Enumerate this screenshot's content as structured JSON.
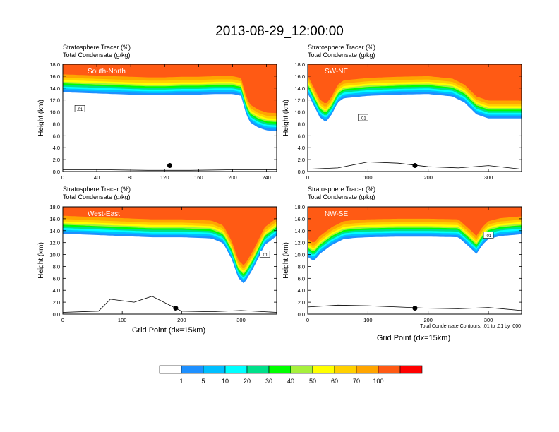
{
  "title": "2013-08-29_12:00:00",
  "panel_subtitle_1": "Stratosphere Tracer   (%)",
  "panel_subtitle_2": "Total Condensate   (g/kg)",
  "ylabel": "Height (km)",
  "xlabel": "Grid Point (dx=15km)",
  "contour_note": "Total Condensate Contours: .01 to .01 by .000",
  "contour_label": ".01",
  "colors": {
    "levels": [
      "#ffffff",
      "#1e90ff",
      "#00bfff",
      "#00ffff",
      "#00e08a",
      "#00ff00",
      "#a6f03c",
      "#ffff00",
      "#ffd000",
      "#ffa500",
      "#ff5a14",
      "#ff0000"
    ],
    "contour": "#000000",
    "marker": "#000000"
  },
  "colorbar": {
    "labels": [
      "1",
      "5",
      "10",
      "20",
      "30",
      "40",
      "50",
      "60",
      "70",
      "100"
    ]
  },
  "chart_data": [
    {
      "type": "heatmap",
      "name": "South-North",
      "label": "South-North",
      "xlim": [
        0,
        252
      ],
      "ylim": [
        0,
        18
      ],
      "xticks": [
        0,
        40,
        80,
        120,
        160,
        200,
        240
      ],
      "yticks": [
        0,
        2,
        4,
        6,
        8,
        10,
        12,
        14,
        16,
        18
      ],
      "xtick_labels": [
        "0",
        "40",
        "80",
        "120",
        "160",
        "200",
        "240"
      ],
      "ytick_labels": [
        "0.0",
        "2.0",
        "4.0",
        "6.0",
        "8.0",
        "10.0",
        "12.0",
        "14.0",
        "16.0",
        "18.0"
      ],
      "tropopause_km": {
        "x": [
          0,
          20,
          40,
          60,
          80,
          100,
          120,
          140,
          160,
          180,
          200,
          210,
          215,
          220,
          230,
          240,
          252
        ],
        "y": [
          14.2,
          14.1,
          14.0,
          13.9,
          13.8,
          13.7,
          13.7,
          13.8,
          13.8,
          13.9,
          13.9,
          13.6,
          11.0,
          9.2,
          8.3,
          7.8,
          7.7
        ]
      },
      "marker": {
        "x": 126,
        "y": 1.0
      },
      "terrain_km": {
        "x": [
          0,
          50,
          100,
          150,
          200,
          252
        ],
        "y": [
          0.3,
          0.3,
          0.2,
          0.2,
          0.3,
          0.3
        ]
      },
      "contour_label_at": {
        "x": 20,
        "y": 10.5
      }
    },
    {
      "type": "heatmap",
      "name": "SW-NE",
      "label": "SW-NE",
      "xlim": [
        0,
        355
      ],
      "ylim": [
        0,
        18
      ],
      "xticks": [
        0,
        100,
        200,
        300
      ],
      "yticks": [
        0,
        2,
        4,
        6,
        8,
        10,
        12,
        14,
        16,
        18
      ],
      "xtick_labels": [
        "0",
        "100",
        "200",
        "300"
      ],
      "ytick_labels": [
        "0.0",
        "2.0",
        "4.0",
        "6.0",
        "8.0",
        "10.0",
        "12.0",
        "14.0",
        "16.0",
        "18.0"
      ],
      "tropopause_km": {
        "x": [
          0,
          10,
          20,
          30,
          40,
          50,
          60,
          80,
          100,
          150,
          200,
          240,
          260,
          280,
          300,
          330,
          355
        ],
        "y": [
          14.0,
          12.0,
          10.0,
          9.2,
          10.5,
          12.5,
          13.2,
          13.4,
          13.6,
          13.8,
          13.9,
          13.5,
          12.5,
          10.5,
          9.8,
          9.8,
          9.8
        ]
      },
      "marker": {
        "x": 178,
        "y": 1.0
      },
      "terrain_km": {
        "x": [
          0,
          50,
          100,
          150,
          200,
          250,
          300,
          355
        ],
        "y": [
          0.4,
          0.6,
          1.6,
          1.4,
          0.8,
          0.6,
          1.0,
          0.4
        ]
      },
      "contour_label_at": {
        "x": 92,
        "y": 9.0
      }
    },
    {
      "type": "heatmap",
      "name": "West-East",
      "label": "West-East",
      "xlim": [
        0,
        360
      ],
      "ylim": [
        0,
        18
      ],
      "xticks": [
        0,
        100,
        200,
        300
      ],
      "yticks": [
        0,
        2,
        4,
        6,
        8,
        10,
        12,
        14,
        16,
        18
      ],
      "xtick_labels": [
        "0",
        "100",
        "200",
        "300"
      ],
      "ytick_labels": [
        "0.0",
        "2.0",
        "4.0",
        "6.0",
        "8.0",
        "10.0",
        "12.0",
        "14.0",
        "16.0",
        "18.0"
      ],
      "tropopause_km": {
        "x": [
          0,
          50,
          100,
          150,
          200,
          250,
          270,
          285,
          295,
          305,
          320,
          340,
          360
        ],
        "y": [
          14.4,
          14.2,
          14.0,
          13.8,
          13.8,
          13.6,
          12.8,
          10.0,
          7.0,
          6.0,
          8.5,
          12.5,
          14.0
        ]
      },
      "marker": {
        "x": 190,
        "y": 1.0
      },
      "terrain_km": {
        "x": [
          0,
          60,
          80,
          120,
          150,
          170,
          200,
          250,
          300,
          360
        ],
        "y": [
          0.3,
          0.5,
          2.5,
          2.0,
          3.0,
          2.0,
          0.5,
          0.4,
          0.6,
          0.3
        ]
      },
      "contour_label_at": {
        "x": 340,
        "y": 10.0
      }
    },
    {
      "type": "heatmap",
      "name": "NW-SE",
      "label": "NW-SE",
      "xlim": [
        0,
        355
      ],
      "ylim": [
        0,
        18
      ],
      "xticks": [
        0,
        100,
        200,
        300
      ],
      "yticks": [
        0,
        2,
        4,
        6,
        8,
        10,
        12,
        14,
        16,
        18
      ],
      "xtick_labels": [
        "0",
        "100",
        "200",
        "300"
      ],
      "ytick_labels": [
        "0.0",
        "2.0",
        "4.0",
        "6.0",
        "8.0",
        "10.0",
        "12.0",
        "14.0",
        "16.0",
        "18.0"
      ],
      "tropopause_km": {
        "x": [
          0,
          10,
          20,
          40,
          60,
          80,
          100,
          150,
          200,
          250,
          270,
          280,
          290,
          300,
          320,
          355
        ],
        "y": [
          10.5,
          9.8,
          11.0,
          12.5,
          13.5,
          13.7,
          13.8,
          13.9,
          13.9,
          13.8,
          12.0,
          11.0,
          12.5,
          13.5,
          14.0,
          14.3
        ]
      },
      "marker": {
        "x": 178,
        "y": 1.0
      },
      "terrain_km": {
        "x": [
          0,
          50,
          100,
          150,
          200,
          250,
          300,
          355
        ],
        "y": [
          1.2,
          1.5,
          1.4,
          1.2,
          1.0,
          0.9,
          1.1,
          0.6
        ]
      },
      "contour_label_at": {
        "x": 300,
        "y": 13.2
      }
    }
  ]
}
